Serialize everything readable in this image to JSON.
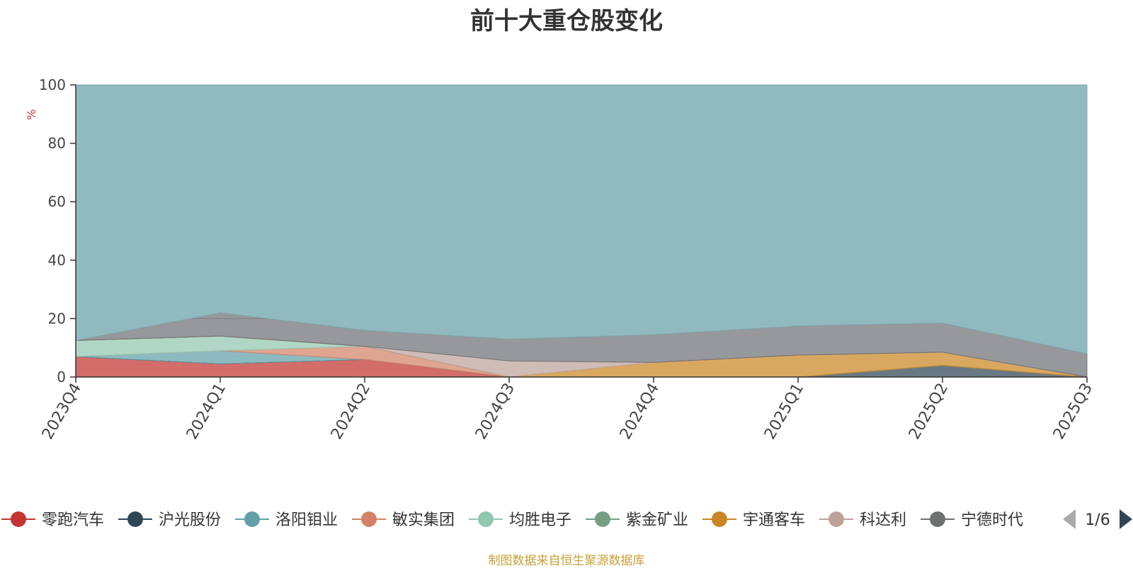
{
  "title": "前十大重仓股变化",
  "source_note": "制图数据来自恒生聚源数据库",
  "legend": {
    "page_indicator": "1/6",
    "prev_icon": "triangle-left-icon",
    "next_icon": "triangle-right-icon",
    "items": [
      {
        "label": "零跑汽车",
        "color": "#c23531"
      },
      {
        "label": "沪光股份",
        "color": "#2f4554"
      },
      {
        "label": "洛阳钼业",
        "color": "#61a0a8"
      },
      {
        "label": "敏实集团",
        "color": "#d48265"
      },
      {
        "label": "均胜电子",
        "color": "#91c7ae"
      },
      {
        "label": "紫金矿业",
        "color": "#749f83"
      },
      {
        "label": "宇通客车",
        "color": "#ca8622"
      },
      {
        "label": "科达利",
        "color": "#bda29a"
      },
      {
        "label": "宁德时代",
        "color": "#6e7074"
      }
    ]
  },
  "chart_data": {
    "type": "area",
    "stacked": true,
    "title": "前十大重仓股变化",
    "ylabel": "%",
    "ylim": [
      0,
      100
    ],
    "yticks": [
      0,
      20,
      40,
      60,
      80,
      100
    ],
    "grid": true,
    "categories": [
      "2023Q4",
      "2024Q1",
      "2024Q2",
      "2024Q3",
      "2024Q4",
      "2025Q1",
      "2025Q2",
      "2025Q3"
    ],
    "series": [
      {
        "name": "零跑汽车",
        "color": "#c23531",
        "values": [
          7.0,
          4.5,
          6.0,
          0.0,
          0.0,
          0.0,
          0.0,
          0.0
        ]
      },
      {
        "name": "沪光股份",
        "color": "#2f4554",
        "values": [
          0.0,
          0.0,
          0.0,
          0.0,
          0.0,
          0.0,
          4.0,
          0.0
        ]
      },
      {
        "name": "洛阳钼业",
        "color": "#61a0a8",
        "values": [
          0.0,
          4.5,
          0.0,
          0.0,
          0.0,
          0.0,
          0.0,
          0.0
        ]
      },
      {
        "name": "敏实集团",
        "color": "#d48265",
        "values": [
          0.0,
          0.0,
          4.5,
          0.0,
          0.0,
          0.0,
          0.0,
          0.0
        ]
      },
      {
        "name": "均胜电子",
        "color": "#91c7ae",
        "values": [
          5.5,
          5.0,
          0.0,
          0.0,
          0.0,
          0.0,
          0.0,
          0.0
        ]
      },
      {
        "name": "紫金矿业",
        "color": "#749f83",
        "values": [
          0.0,
          0.0,
          0.0,
          0.0,
          0.0,
          0.0,
          0.0,
          0.0
        ]
      },
      {
        "name": "宇通客车",
        "color": "#ca8622",
        "values": [
          0.0,
          0.0,
          0.0,
          0.0,
          5.0,
          7.5,
          4.5,
          0.0
        ]
      },
      {
        "name": "科达利",
        "color": "#bda29a",
        "values": [
          0.0,
          0.0,
          0.0,
          5.5,
          0.0,
          0.0,
          0.0,
          0.0
        ]
      },
      {
        "name": "宁德时代",
        "color": "#6e7074",
        "values": [
          0.0,
          8.0,
          5.5,
          7.5,
          9.5,
          10.0,
          10.0,
          8.0
        ]
      }
    ]
  }
}
